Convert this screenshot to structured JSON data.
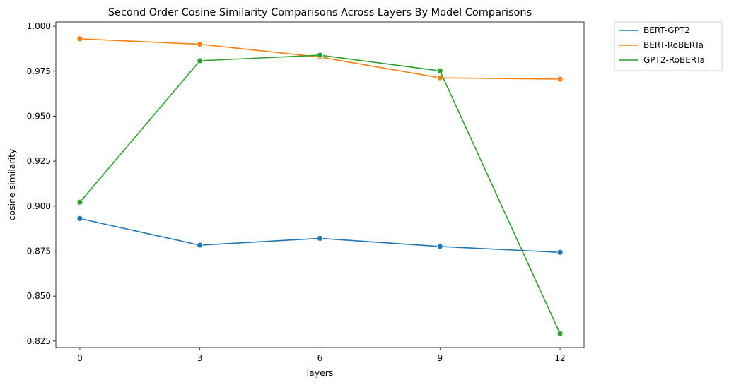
{
  "chart_data": {
    "type": "line",
    "title": "Second Order Cosine Similarity Comparisons Across Layers By Model Comparisons",
    "xlabel": "layers",
    "ylabel": "cosine similarity",
    "x": [
      0,
      3,
      6,
      9,
      12
    ],
    "xticks": [
      0,
      3,
      6,
      9,
      12
    ],
    "xtick_labels": [
      "0",
      "3",
      "6",
      "9",
      "12"
    ],
    "xlim": [
      -0.6,
      12.6
    ],
    "yticks": [
      0.825,
      0.85,
      0.875,
      0.9,
      0.925,
      0.95,
      0.975,
      1.0
    ],
    "ytick_labels": [
      "0.825",
      "0.850",
      "0.875",
      "0.900",
      "0.925",
      "0.950",
      "0.975",
      "1.000"
    ],
    "ylim": [
      0.8214,
      1.0024
    ],
    "grid": false,
    "legend_position": "outside-top-right",
    "series": [
      {
        "name": "BERT-GPT2",
        "color": "#1f77b4",
        "values": [
          0.8931,
          0.8783,
          0.8821,
          0.8776,
          0.8743
        ]
      },
      {
        "name": "BERT-RoBERTa",
        "color": "#ff7f0e",
        "values": [
          0.993,
          0.99,
          0.9829,
          0.9713,
          0.9706
        ]
      },
      {
        "name": "GPT2-RoBERTa",
        "color": "#2ca02c",
        "values": [
          0.9022,
          0.9808,
          0.9839,
          0.9752,
          0.8292
        ]
      }
    ]
  }
}
